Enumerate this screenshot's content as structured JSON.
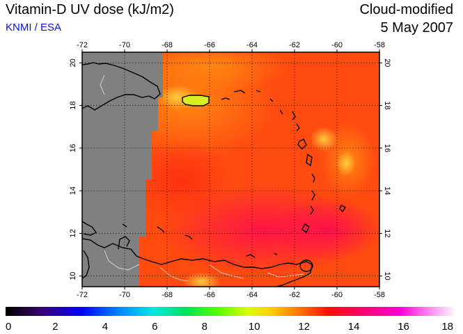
{
  "header": {
    "title": "Vitamin-D UV dose (kJ/m2)",
    "credit": "KNMI / ESA",
    "mode": "Cloud-modified",
    "date": "5 May 2007"
  },
  "map": {
    "lon_range": [
      -72,
      -58
    ],
    "lat_range": [
      9.5,
      20.5
    ],
    "lon_ticks": [
      -72,
      -70,
      -68,
      -66,
      -64,
      -62,
      -60,
      -58
    ],
    "lat_ticks": [
      10,
      12,
      14,
      16,
      18,
      20
    ],
    "grid": "dotted",
    "no_data_color": "#808080"
  },
  "colorbar": {
    "min": 0,
    "max": 18,
    "ticks": [
      0,
      2,
      4,
      6,
      8,
      10,
      12,
      14,
      16,
      18
    ]
  }
}
